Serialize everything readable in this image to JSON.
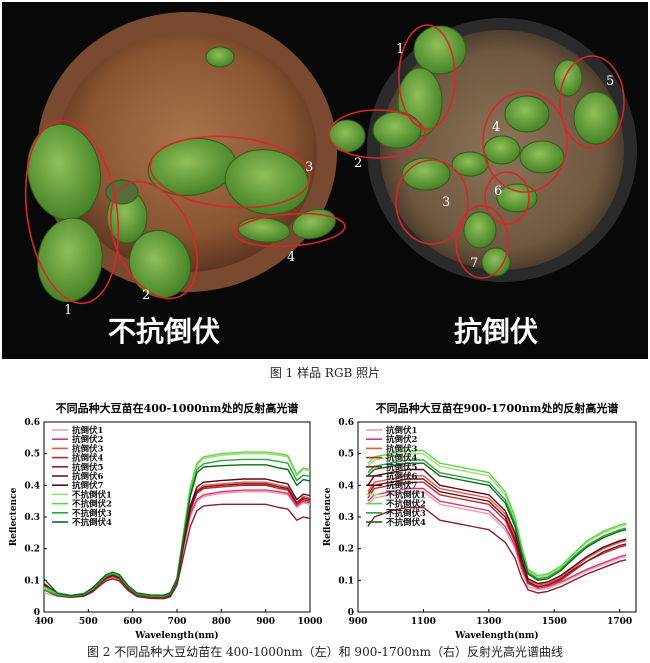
{
  "figure1": {
    "left_label": "不抗倒伏",
    "right_label": "抗倒伏",
    "left_plant_numbers": [
      "1",
      "2",
      "3",
      "4"
    ],
    "right_plant_numbers": [
      "1",
      "2",
      "3",
      "4",
      "5",
      "6",
      "7"
    ],
    "caption": "图 1  样品 RGB 照片"
  },
  "figure2": {
    "caption": "图 2  不同品种大豆幼苗在 400-1000nm（左）和 900-1700nm（右）反射光高光谱曲线"
  },
  "chart_data": [
    {
      "type": "line",
      "title": "不同品种大豆苗在400-1000nm处的反射高光谱",
      "xlabel": "Wavelength(nm)",
      "ylabel": "Reflectence",
      "xlim": [
        400,
        1000
      ],
      "ylim": [
        0,
        0.6
      ],
      "xticks": [
        400,
        500,
        600,
        700,
        800,
        900,
        1000
      ],
      "yticks": [
        0,
        0.1,
        0.2,
        0.3,
        0.4,
        0.5,
        0.6
      ],
      "grid": false,
      "legend": "top-left",
      "x": [
        400,
        430,
        460,
        490,
        510,
        525,
        540,
        555,
        570,
        590,
        610,
        640,
        670,
        685,
        700,
        715,
        730,
        745,
        760,
        800,
        850,
        900,
        930,
        950,
        970,
        985,
        1000
      ],
      "series": [
        {
          "name": "抗倒伏1",
          "color": "#e8a0a8",
          "values": [
            0.06,
            0.05,
            0.046,
            0.05,
            0.064,
            0.082,
            0.1,
            0.108,
            0.1,
            0.07,
            0.05,
            0.045,
            0.044,
            0.05,
            0.09,
            0.2,
            0.3,
            0.35,
            0.365,
            0.375,
            0.38,
            0.38,
            0.375,
            0.37,
            0.33,
            0.345,
            0.34
          ]
        },
        {
          "name": "抗倒伏2",
          "color": "#e0307a",
          "values": [
            0.07,
            0.052,
            0.047,
            0.051,
            0.066,
            0.085,
            0.104,
            0.112,
            0.104,
            0.072,
            0.052,
            0.046,
            0.045,
            0.052,
            0.095,
            0.21,
            0.31,
            0.355,
            0.37,
            0.38,
            0.385,
            0.385,
            0.38,
            0.375,
            0.335,
            0.35,
            0.345
          ]
        },
        {
          "name": "抗倒伏3",
          "color": "#e45a3a",
          "values": [
            0.08,
            0.055,
            0.049,
            0.053,
            0.07,
            0.09,
            0.11,
            0.118,
            0.11,
            0.076,
            0.054,
            0.048,
            0.047,
            0.055,
            0.1,
            0.22,
            0.33,
            0.385,
            0.4,
            0.405,
            0.41,
            0.41,
            0.4,
            0.395,
            0.345,
            0.365,
            0.36
          ]
        },
        {
          "name": "抗倒伏4",
          "color": "#c0282a",
          "values": [
            0.075,
            0.054,
            0.048,
            0.052,
            0.068,
            0.088,
            0.106,
            0.114,
            0.106,
            0.074,
            0.053,
            0.047,
            0.046,
            0.053,
            0.096,
            0.215,
            0.32,
            0.375,
            0.39,
            0.395,
            0.4,
            0.4,
            0.39,
            0.385,
            0.34,
            0.355,
            0.35
          ]
        },
        {
          "name": "抗倒伏5",
          "color": "#8a1f2a",
          "values": [
            0.07,
            0.051,
            0.046,
            0.05,
            0.064,
            0.082,
            0.098,
            0.105,
            0.098,
            0.068,
            0.049,
            0.043,
            0.042,
            0.048,
            0.085,
            0.18,
            0.27,
            0.32,
            0.335,
            0.34,
            0.34,
            0.34,
            0.33,
            0.325,
            0.29,
            0.3,
            0.295
          ]
        },
        {
          "name": "抗倒伏6",
          "color": "#7a1028",
          "values": [
            0.085,
            0.056,
            0.049,
            0.053,
            0.07,
            0.09,
            0.108,
            0.116,
            0.108,
            0.075,
            0.054,
            0.048,
            0.047,
            0.054,
            0.098,
            0.215,
            0.325,
            0.38,
            0.395,
            0.4,
            0.405,
            0.405,
            0.395,
            0.39,
            0.345,
            0.36,
            0.355
          ]
        },
        {
          "name": "抗倒伏7",
          "color": "#5a0818",
          "values": [
            0.09,
            0.058,
            0.05,
            0.054,
            0.072,
            0.092,
            0.11,
            0.118,
            0.11,
            0.077,
            0.055,
            0.049,
            0.048,
            0.055,
            0.1,
            0.22,
            0.335,
            0.395,
            0.41,
            0.415,
            0.42,
            0.42,
            0.41,
            0.405,
            0.355,
            0.372,
            0.368
          ]
        },
        {
          "name": "不抗倒伏1",
          "color": "#a8d870",
          "values": [
            0.075,
            0.055,
            0.05,
            0.056,
            0.074,
            0.095,
            0.114,
            0.122,
            0.114,
            0.08,
            0.057,
            0.051,
            0.05,
            0.058,
            0.105,
            0.25,
            0.39,
            0.465,
            0.485,
            0.495,
            0.5,
            0.5,
            0.495,
            0.49,
            0.43,
            0.45,
            0.445
          ]
        },
        {
          "name": "不抗倒伏2",
          "color": "#58d848",
          "values": [
            0.08,
            0.057,
            0.051,
            0.057,
            0.076,
            0.097,
            0.116,
            0.124,
            0.116,
            0.081,
            0.058,
            0.052,
            0.051,
            0.059,
            0.108,
            0.255,
            0.395,
            0.47,
            0.49,
            0.5,
            0.505,
            0.505,
            0.5,
            0.495,
            0.435,
            0.455,
            0.45
          ]
        },
        {
          "name": "不抗倒伏3",
          "color": "#20a838",
          "values": [
            0.07,
            0.054,
            0.049,
            0.055,
            0.072,
            0.093,
            0.112,
            0.12,
            0.112,
            0.078,
            0.056,
            0.05,
            0.049,
            0.057,
            0.102,
            0.24,
            0.375,
            0.45,
            0.468,
            0.478,
            0.482,
            0.482,
            0.475,
            0.47,
            0.415,
            0.432,
            0.428
          ]
        },
        {
          "name": "不抗倒伏4",
          "color": "#106818",
          "values": [
            0.105,
            0.06,
            0.052,
            0.058,
            0.077,
            0.098,
            0.118,
            0.126,
            0.118,
            0.083,
            0.06,
            0.054,
            0.053,
            0.061,
            0.105,
            0.235,
            0.365,
            0.44,
            0.458,
            0.462,
            0.465,
            0.465,
            0.455,
            0.45,
            0.4,
            0.418,
            0.414
          ]
        }
      ]
    },
    {
      "type": "line",
      "title": "不同品种大豆苗在900-1700nm处的反射高光谱",
      "xlabel": "Wavelength(nm)",
      "ylabel": "Reflectence",
      "xlim": [
        900,
        1750
      ],
      "ylim": [
        0,
        0.6
      ],
      "xticks": [
        900,
        1100,
        1300,
        1500,
        1700
      ],
      "yticks": [
        0,
        0.1,
        0.2,
        0.3,
        0.4,
        0.5,
        0.6
      ],
      "grid": false,
      "legend": "top-left",
      "x": [
        930,
        950,
        1000,
        1050,
        1100,
        1150,
        1200,
        1250,
        1300,
        1350,
        1380,
        1400,
        1420,
        1450,
        1480,
        1520,
        1560,
        1600,
        1650,
        1700,
        1720
      ],
      "series": [
        {
          "name": "抗倒伏1",
          "color": "#e8a0a8",
          "values": [
            0.34,
            0.36,
            0.37,
            0.38,
            0.38,
            0.34,
            0.33,
            0.32,
            0.31,
            0.26,
            0.2,
            0.13,
            0.08,
            0.07,
            0.075,
            0.09,
            0.11,
            0.13,
            0.15,
            0.17,
            0.175
          ]
        },
        {
          "name": "抗倒伏2",
          "color": "#e0307a",
          "values": [
            0.35,
            0.37,
            0.38,
            0.39,
            0.39,
            0.35,
            0.34,
            0.33,
            0.32,
            0.27,
            0.21,
            0.14,
            0.09,
            0.075,
            0.08,
            0.095,
            0.115,
            0.135,
            0.155,
            0.175,
            0.18
          ]
        },
        {
          "name": "抗倒伏3",
          "color": "#e45a3a",
          "values": [
            0.38,
            0.41,
            0.42,
            0.43,
            0.43,
            0.39,
            0.38,
            0.37,
            0.36,
            0.31,
            0.24,
            0.16,
            0.1,
            0.085,
            0.09,
            0.11,
            0.14,
            0.17,
            0.2,
            0.22,
            0.225
          ]
        },
        {
          "name": "抗倒伏4",
          "color": "#c0282a",
          "values": [
            0.36,
            0.39,
            0.4,
            0.41,
            0.41,
            0.37,
            0.36,
            0.35,
            0.34,
            0.29,
            0.22,
            0.15,
            0.09,
            0.08,
            0.085,
            0.1,
            0.13,
            0.16,
            0.185,
            0.205,
            0.21
          ]
        },
        {
          "name": "抗倒伏5",
          "color": "#8a1f2a",
          "values": [
            0.27,
            0.3,
            0.32,
            0.33,
            0.33,
            0.29,
            0.28,
            0.27,
            0.26,
            0.22,
            0.17,
            0.11,
            0.07,
            0.06,
            0.065,
            0.08,
            0.1,
            0.12,
            0.14,
            0.16,
            0.165
          ]
        },
        {
          "name": "抗倒伏6",
          "color": "#7a1028",
          "values": [
            0.37,
            0.4,
            0.41,
            0.42,
            0.42,
            0.38,
            0.37,
            0.36,
            0.35,
            0.3,
            0.23,
            0.155,
            0.095,
            0.08,
            0.085,
            0.105,
            0.135,
            0.16,
            0.19,
            0.21,
            0.215
          ]
        },
        {
          "name": "抗倒伏7",
          "color": "#5a0818",
          "values": [
            0.4,
            0.43,
            0.44,
            0.45,
            0.45,
            0.4,
            0.39,
            0.38,
            0.37,
            0.32,
            0.25,
            0.17,
            0.105,
            0.09,
            0.095,
            0.115,
            0.145,
            0.175,
            0.205,
            0.225,
            0.23
          ]
        },
        {
          "name": "不抗倒伏1",
          "color": "#a8d870",
          "values": [
            0.46,
            0.48,
            0.49,
            0.5,
            0.5,
            0.46,
            0.45,
            0.44,
            0.43,
            0.37,
            0.29,
            0.2,
            0.13,
            0.11,
            0.115,
            0.14,
            0.18,
            0.22,
            0.25,
            0.27,
            0.275
          ]
        },
        {
          "name": "不抗倒伏2",
          "color": "#58d848",
          "values": [
            0.47,
            0.49,
            0.5,
            0.51,
            0.51,
            0.47,
            0.46,
            0.45,
            0.44,
            0.38,
            0.3,
            0.21,
            0.135,
            0.115,
            0.12,
            0.145,
            0.185,
            0.225,
            0.255,
            0.275,
            0.28
          ]
        },
        {
          "name": "不抗倒伏3",
          "color": "#20a838",
          "values": [
            0.44,
            0.46,
            0.47,
            0.48,
            0.48,
            0.44,
            0.43,
            0.42,
            0.41,
            0.355,
            0.28,
            0.19,
            0.125,
            0.105,
            0.11,
            0.135,
            0.175,
            0.21,
            0.24,
            0.26,
            0.265
          ]
        },
        {
          "name": "不抗倒伏4",
          "color": "#106818",
          "values": [
            0.43,
            0.45,
            0.46,
            0.47,
            0.47,
            0.43,
            0.42,
            0.41,
            0.4,
            0.345,
            0.27,
            0.185,
            0.12,
            0.1,
            0.105,
            0.13,
            0.17,
            0.205,
            0.235,
            0.255,
            0.26
          ]
        }
      ]
    }
  ]
}
